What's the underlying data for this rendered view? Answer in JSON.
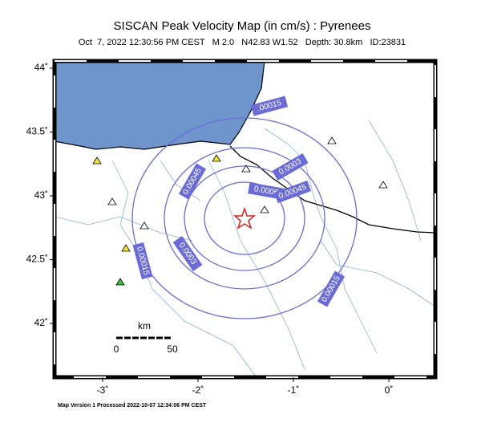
{
  "title": "SISCAN Peak Velocity Map (in cm/s) : Pyrenees",
  "subtitle": "Oct  7, 2022 12:30:56 PM CEST   M 2.0   N42.83 W1.52   Depth: 30.8km   ID:23831",
  "lat_ticks": [
    {
      "value": 44,
      "label": "44˚"
    },
    {
      "value": 43.5,
      "label": "43.5˚"
    },
    {
      "value": 43,
      "label": "43˚"
    },
    {
      "value": 42.5,
      "label": "42.5˚"
    },
    {
      "value": 42,
      "label": "42˚"
    }
  ],
  "lon_ticks": [
    {
      "value": -3,
      "label": "-3˚"
    },
    {
      "value": -2,
      "label": "-2˚"
    },
    {
      "value": -1,
      "label": "-1˚"
    },
    {
      "value": 0,
      "label": "0˚"
    }
  ],
  "contour_labels": [
    ".00015",
    "0.0003",
    "0.00045",
    "0.0006",
    "0.00045",
    "0.0003",
    "0.00015",
    "0.00015"
  ],
  "scale": {
    "unit": "km",
    "ticks": [
      0,
      50
    ]
  },
  "footer": "Map Version 1 Processed 2022-10-07 12:34:06 PM CEST"
}
